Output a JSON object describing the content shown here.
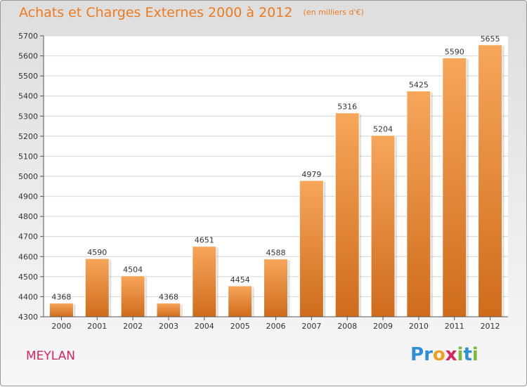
{
  "title": "Achats et Charges Externes 2000 à 2012",
  "unit_label": "(en milliers d'€)",
  "city": "MEYLAN",
  "brand": {
    "text": "Proxiti",
    "letters": [
      "P",
      "r",
      "o",
      "x",
      "i",
      "t",
      "i"
    ],
    "colors": [
      "#2f8fd6",
      "#2f8fd6",
      "#f0a020",
      "#d9245f",
      "#7cb83a",
      "#2f8fd6",
      "#7cb83a"
    ]
  },
  "colors": {
    "bar_top": "#f7a65a",
    "bar_bottom": "#cf6c1c",
    "title": "#ee7a1f",
    "city": "#d9245f"
  },
  "chart_data": {
    "type": "bar",
    "categories": [
      "2000",
      "2001",
      "2002",
      "2003",
      "2004",
      "2005",
      "2006",
      "2007",
      "2008",
      "2009",
      "2010",
      "2011",
      "2012"
    ],
    "values": [
      4368,
      4590,
      4504,
      4368,
      4651,
      4454,
      4588,
      4979,
      5316,
      5204,
      5425,
      5590,
      5655
    ],
    "title": "Achats et Charges Externes 2000 à 2012",
    "xlabel": "",
    "ylabel": "",
    "ylim": [
      4300,
      5700
    ],
    "yticks": [
      4300,
      4400,
      4500,
      4600,
      4700,
      4800,
      4900,
      5000,
      5100,
      5200,
      5300,
      5400,
      5500,
      5600,
      5700
    ],
    "grid": true,
    "data_labels": true
  }
}
